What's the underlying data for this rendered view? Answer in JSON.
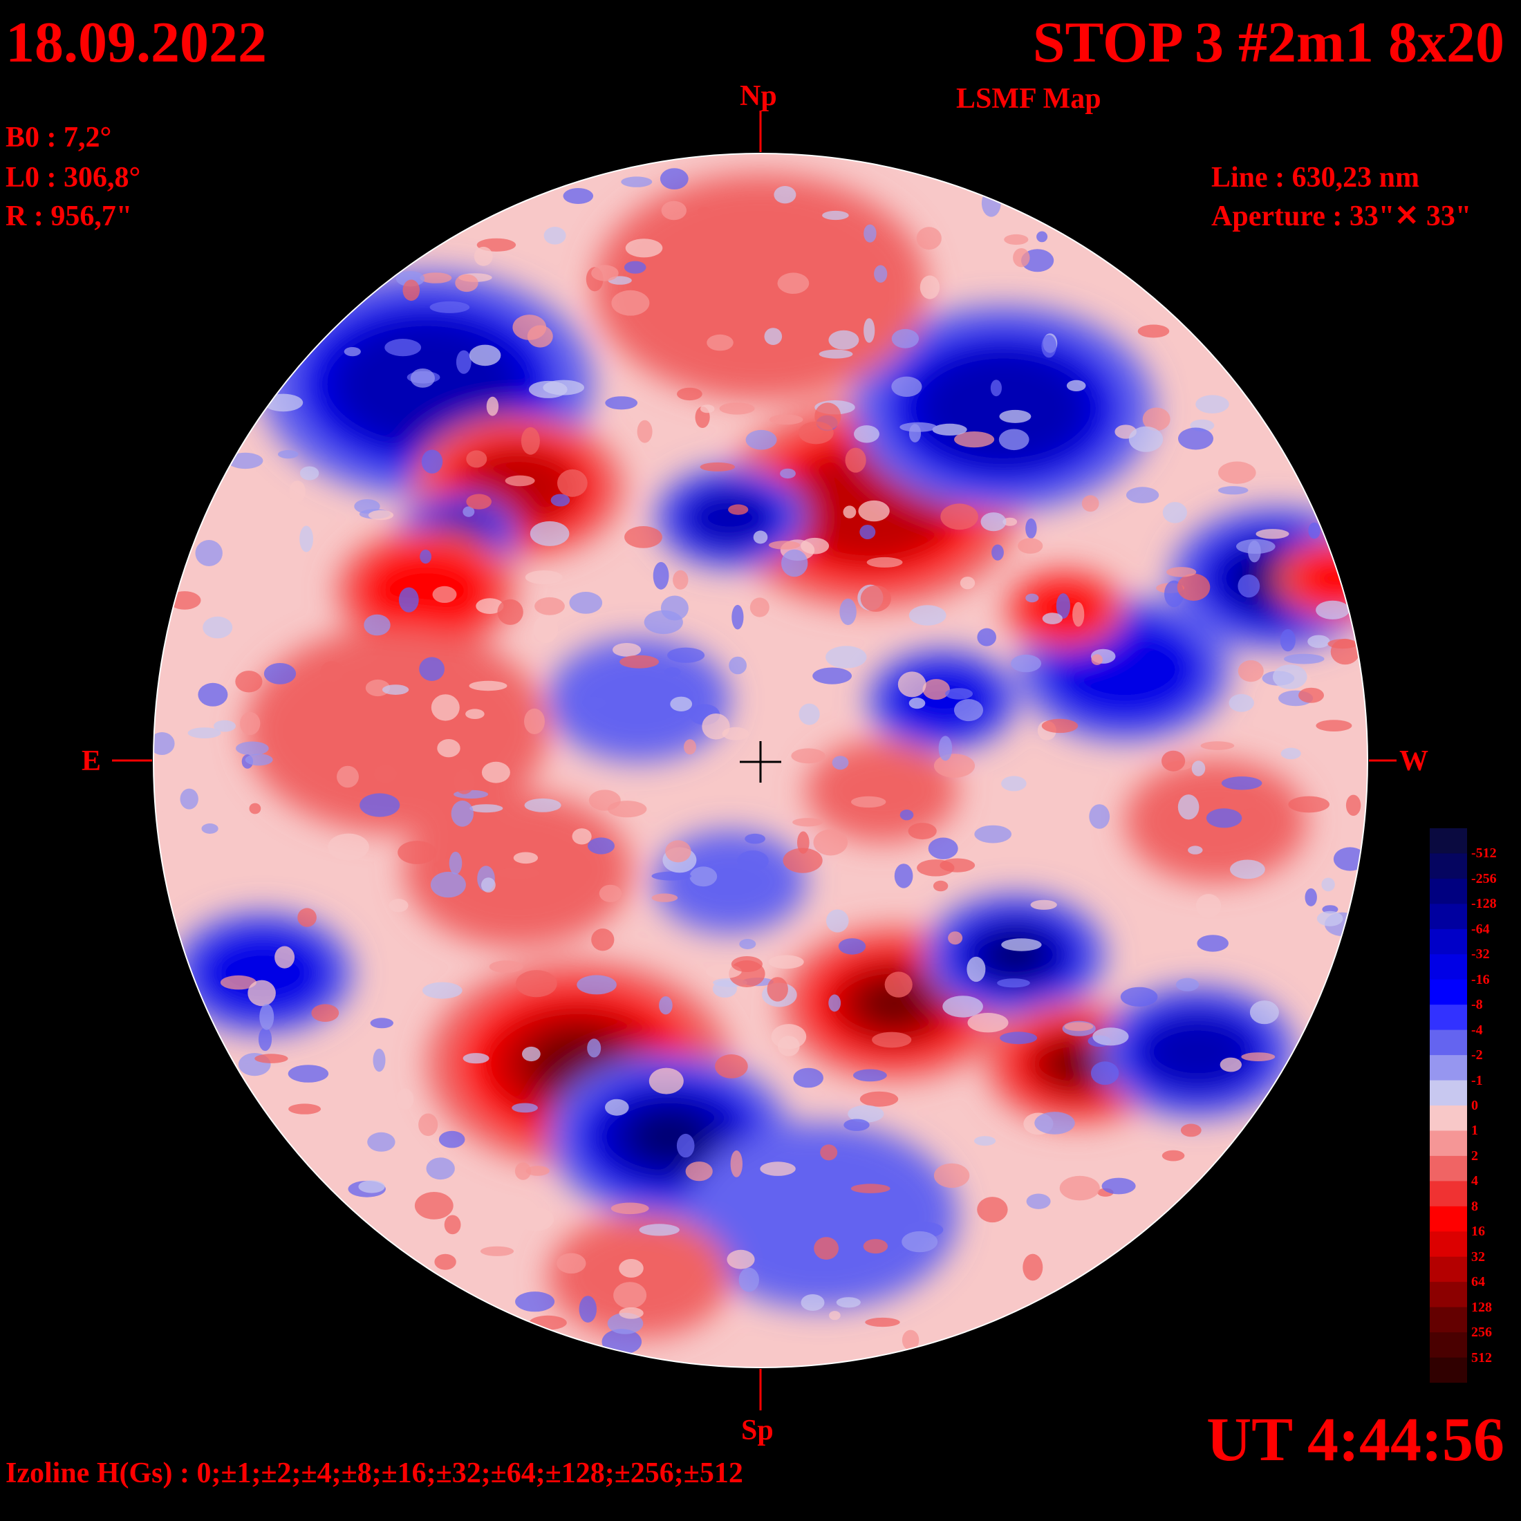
{
  "header": {
    "date": "18.09.2022",
    "title": "STOP 3 #2m1 8x20",
    "subtitle": "LSMF  Map"
  },
  "params": {
    "b0": "B0 : 7,2°",
    "l0": "L0 : 306,8°",
    "r": "R  : 956,7\"",
    "line": "Line :  630,23 nm",
    "aperture": "Aperture : 33\"✕ 33\""
  },
  "directions": {
    "north": "Np",
    "south": "Sp",
    "east": "E",
    "west": "W"
  },
  "time": "UT 4:44:56",
  "izoline": "Izoline H(Gs) : 0;±1;±2;±4;±8;±16;±32;±64;±128;±256;±512",
  "colors": {
    "background": "#000000",
    "text": "#ff0000",
    "negative_strong": "#0000aa",
    "negative_weak": "#c8c8f0",
    "positive_weak": "#f8c8c8",
    "positive_strong": "#a00000"
  },
  "colorbar": {
    "labels": [
      "-512",
      "-256",
      "-128",
      "-64",
      "-32",
      "-16",
      "-8",
      "-4",
      "-2",
      "-1",
      "0",
      "1",
      "2",
      "4",
      "8",
      "16",
      "32",
      "64",
      "128",
      "256",
      "512"
    ],
    "colors": [
      "#0a0a40",
      "#050560",
      "#000080",
      "#0000a0",
      "#0000c8",
      "#0000e6",
      "#0000ff",
      "#3232ff",
      "#6464f0",
      "#9696f0",
      "#c8c8f0",
      "#f8c8c8",
      "#f59696",
      "#f06464",
      "#f03232",
      "#ff0000",
      "#dc0000",
      "#b40000",
      "#8c0000",
      "#640000",
      "#4a0000",
      "#300000"
    ]
  },
  "map": {
    "regions": [
      {
        "polarity": "negative",
        "level": 3,
        "lat": 0.62,
        "lon": -0.55,
        "size": 0.22
      },
      {
        "polarity": "positive",
        "level": 3,
        "lat": 0.45,
        "lon": -0.4,
        "size": 0.14
      },
      {
        "polarity": "negative",
        "level": 4,
        "lat": 0.37,
        "lon": -0.5,
        "size": 0.08
      },
      {
        "polarity": "positive",
        "level": 3,
        "lat": 0.42,
        "lon": 0.18,
        "size": 0.2
      },
      {
        "polarity": "negative",
        "level": 3,
        "lat": 0.4,
        "lon": -0.05,
        "size": 0.1
      },
      {
        "polarity": "negative",
        "level": 3,
        "lat": 0.58,
        "lon": 0.4,
        "size": 0.2
      },
      {
        "polarity": "negative",
        "level": 4,
        "lat": 0.3,
        "lon": 0.85,
        "size": 0.14
      },
      {
        "polarity": "positive",
        "level": 2,
        "lat": 0.3,
        "lon": 0.95,
        "size": 0.08
      },
      {
        "polarity": "negative",
        "level": 2,
        "lat": 0.15,
        "lon": 0.6,
        "size": 0.14
      },
      {
        "polarity": "positive",
        "level": 2,
        "lat": 0.25,
        "lon": 0.5,
        "size": 0.08
      },
      {
        "polarity": "positive",
        "level": 1,
        "lat": 0.78,
        "lon": 0.0,
        "size": 0.22
      },
      {
        "polarity": "positive",
        "level": 2,
        "lat": 0.28,
        "lon": -0.55,
        "size": 0.12
      },
      {
        "polarity": "negative",
        "level": 1,
        "lat": 0.1,
        "lon": -0.2,
        "size": 0.12
      },
      {
        "polarity": "positive",
        "level": 1,
        "lat": 0.05,
        "lon": -0.6,
        "size": 0.2
      },
      {
        "polarity": "negative",
        "level": 2,
        "lat": 0.1,
        "lon": 0.3,
        "size": 0.1
      },
      {
        "polarity": "positive",
        "level": 1,
        "lat": -0.05,
        "lon": 0.2,
        "size": 0.1
      },
      {
        "polarity": "negative",
        "level": 2,
        "lat": -0.35,
        "lon": -0.82,
        "size": 0.12
      },
      {
        "polarity": "positive",
        "level": 4,
        "lat": -0.5,
        "lon": -0.3,
        "size": 0.2
      },
      {
        "polarity": "negative",
        "level": 4,
        "lat": -0.62,
        "lon": -0.15,
        "size": 0.16
      },
      {
        "polarity": "positive",
        "level": 4,
        "lat": -0.4,
        "lon": 0.22,
        "size": 0.15
      },
      {
        "polarity": "negative",
        "level": 4,
        "lat": -0.32,
        "lon": 0.42,
        "size": 0.12
      },
      {
        "polarity": "positive",
        "level": 4,
        "lat": -0.5,
        "lon": 0.52,
        "size": 0.12
      },
      {
        "polarity": "negative",
        "level": 3,
        "lat": -0.48,
        "lon": 0.72,
        "size": 0.13
      },
      {
        "polarity": "negative",
        "level": 1,
        "lat": -0.2,
        "lon": -0.05,
        "size": 0.1
      },
      {
        "polarity": "positive",
        "level": 1,
        "lat": -0.18,
        "lon": -0.4,
        "size": 0.15
      },
      {
        "polarity": "negative",
        "level": 1,
        "lat": -0.75,
        "lon": 0.1,
        "size": 0.18
      },
      {
        "polarity": "positive",
        "level": 1,
        "lat": -0.85,
        "lon": -0.2,
        "size": 0.12
      },
      {
        "polarity": "positive",
        "level": 1,
        "lat": -0.1,
        "lon": 0.75,
        "size": 0.12
      }
    ]
  }
}
